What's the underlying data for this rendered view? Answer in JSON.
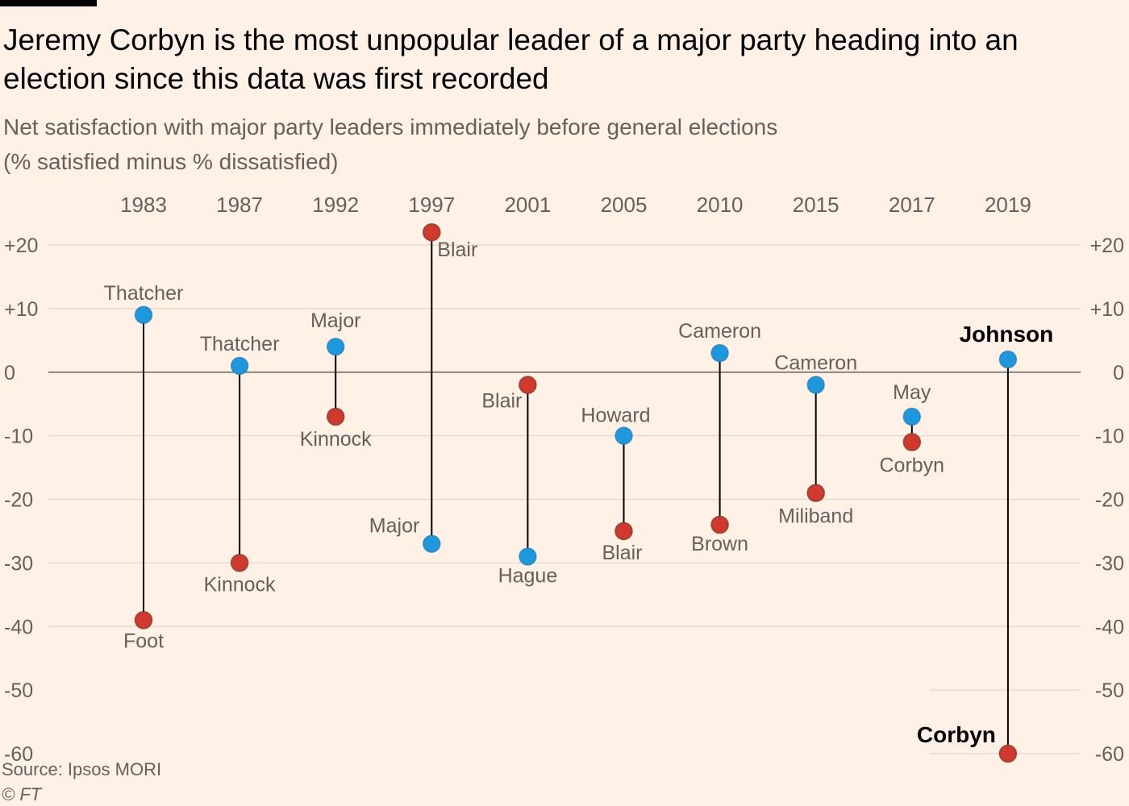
{
  "title": "Jeremy Corbyn is the most unpopular leader of a major party heading into an election since this data was first recorded",
  "subtitle_line1": "Net satisfaction with major party leaders immediately before general elections",
  "subtitle_line2": "(% satisfied minus % dissatisfied)",
  "source": "Source: Ipsos MORI",
  "credit": "© FT",
  "colors": {
    "background": "#fff1e5",
    "conservative": "#1e98dc",
    "labour": "#d0392c",
    "stem": "#000000",
    "grid": "#e6d9ce",
    "zero_line": "#66605c"
  },
  "chart_data": {
    "type": "dot-range",
    "ylim": [
      -60,
      20
    ],
    "y_ticks": [
      20,
      10,
      0,
      -10,
      -20,
      -30,
      -40,
      -50,
      -60
    ],
    "y_tick_labels": [
      "+20",
      "+10",
      "0",
      "-10",
      "-20",
      "-30",
      "-40",
      "-50",
      "-60"
    ],
    "categories": [
      "1983",
      "1987",
      "1992",
      "1997",
      "2001",
      "2005",
      "2010",
      "2015",
      "2017",
      "2019"
    ],
    "series": [
      {
        "party": "conservative",
        "color": "#1e98dc",
        "points": [
          {
            "year": "1983",
            "leader": "Thatcher",
            "value": 9
          },
          {
            "year": "1987",
            "leader": "Thatcher",
            "value": 1
          },
          {
            "year": "1992",
            "leader": "Major",
            "value": 4
          },
          {
            "year": "1997",
            "leader": "Major",
            "value": -27
          },
          {
            "year": "2001",
            "leader": "Hague",
            "value": -29
          },
          {
            "year": "2005",
            "leader": "Howard",
            "value": -10
          },
          {
            "year": "2010",
            "leader": "Cameron",
            "value": 3
          },
          {
            "year": "2015",
            "leader": "Cameron",
            "value": -2
          },
          {
            "year": "2017",
            "leader": "May",
            "value": -7
          },
          {
            "year": "2019",
            "leader": "Johnson",
            "value": 2
          }
        ]
      },
      {
        "party": "labour",
        "color": "#d0392c",
        "points": [
          {
            "year": "1983",
            "leader": "Foot",
            "value": -39
          },
          {
            "year": "1987",
            "leader": "Kinnock",
            "value": -30
          },
          {
            "year": "1992",
            "leader": "Kinnock",
            "value": -7
          },
          {
            "year": "1997",
            "leader": "Blair",
            "value": 22
          },
          {
            "year": "2001",
            "leader": "Blair",
            "value": -2
          },
          {
            "year": "2005",
            "leader": "Blair",
            "value": -25
          },
          {
            "year": "2010",
            "leader": "Brown",
            "value": -24
          },
          {
            "year": "2015",
            "leader": "Miliband",
            "value": -19
          },
          {
            "year": "2017",
            "leader": "Corbyn",
            "value": -11
          },
          {
            "year": "2019",
            "leader": "Corbyn",
            "value": -60
          }
        ]
      }
    ]
  }
}
